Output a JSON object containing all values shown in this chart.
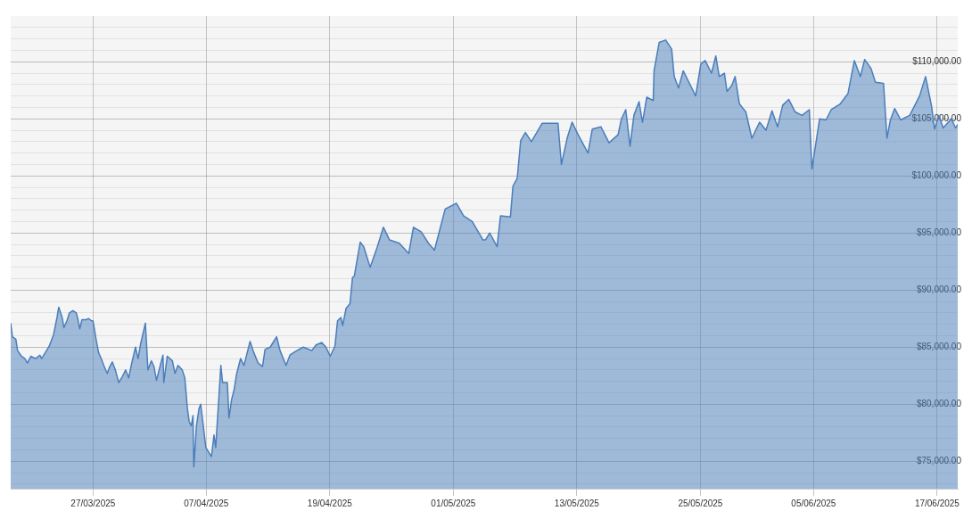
{
  "chart_data": {
    "type": "area",
    "color": "#4a7ebb",
    "x": [
      "2025-03-19T00:00",
      "2025-03-19T04:00",
      "2025-03-19T12:00",
      "2025-03-19T16:00",
      "2025-03-20T01:00",
      "2025-03-20T09:00",
      "2025-03-20T15:00",
      "2025-03-20T23:00",
      "2025-03-21T10:00",
      "2025-03-21T20:00",
      "2025-03-22T00:00",
      "2025-03-22T10:00",
      "2025-03-22T18:00",
      "2025-03-23T04:00",
      "2025-03-23T12:00",
      "2025-03-23T16:00",
      "2025-03-24T00:00",
      "2025-03-24T04:00",
      "2025-03-24T11:00",
      "2025-03-24T17:00",
      "2025-03-25T01:00",
      "2025-03-25T09:00",
      "2025-03-25T13:00",
      "2025-03-25T17:00",
      "2025-03-25T22:00",
      "2025-03-26T08:00",
      "2025-03-26T14:00",
      "2025-03-26T20:00",
      "2025-03-27T00:00",
      "2025-03-27T07:00",
      "2025-03-27T13:00",
      "2025-03-27T19:00",
      "2025-03-28T01:00",
      "2025-03-28T09:00",
      "2025-03-28T15:00",
      "2025-03-28T21:00",
      "2025-03-29T04:00",
      "2025-03-29T12:00",
      "2025-03-29T20:00",
      "2025-03-30T04:00",
      "2025-03-30T11:00",
      "2025-03-30T17:00",
      "2025-03-31T03:00",
      "2025-03-31T09:00",
      "2025-03-31T15:00",
      "2025-04-01T02:00",
      "2025-04-01T08:00",
      "2025-04-01T16:00",
      "2025-04-01T22:00",
      "2025-04-02T04:00",
      "2025-04-02T10:00",
      "2025-04-02T19:00",
      "2025-04-02T21:00",
      "2025-04-03T05:00",
      "2025-04-03T17:00",
      "2025-04-03T23:00",
      "2025-04-04T06:00",
      "2025-04-04T16:00",
      "2025-04-04T22:00",
      "2025-04-05T04:00",
      "2025-04-05T08:00",
      "2025-04-05T13:00",
      "2025-04-05T17:00",
      "2025-04-05T19:00",
      "2025-04-06T01:00",
      "2025-04-06T07:00",
      "2025-04-06T11:00",
      "2025-04-06T17:00",
      "2025-04-06T23:00",
      "2025-04-07T12:00",
      "2025-04-07T18:00",
      "2025-04-07T22:00",
      "2025-04-08T10:00",
      "2025-04-08T14:00",
      "2025-04-09T01:00",
      "2025-04-09T05:00",
      "2025-04-09T11:00",
      "2025-04-09T17:00",
      "2025-04-09T23:00",
      "2025-04-10T08:00",
      "2025-04-10T16:00",
      "2025-04-11T00:00",
      "2025-04-11T06:00",
      "2025-04-11T14:00",
      "2025-04-12T01:00",
      "2025-04-12T11:00",
      "2025-04-12T17:00",
      "2025-04-13T05:00",
      "2025-04-13T20:00",
      "2025-04-14T04:00",
      "2025-04-14T18:00",
      "2025-04-15T03:00",
      "2025-04-15T15:00",
      "2025-04-16T10:00",
      "2025-04-17T06:00",
      "2025-04-17T16:00",
      "2025-04-18T05:00",
      "2025-04-18T15:00",
      "2025-04-19T01:00",
      "2025-04-19T12:00",
      "2025-04-19T18:00",
      "2025-04-20T02:00",
      "2025-04-20T06:00",
      "2025-04-20T14:00",
      "2025-04-20T23:00",
      "2025-04-21T05:00",
      "2025-04-21T09:00",
      "2025-04-21T23:00",
      "2025-04-22T07:00",
      "2025-04-22T22:00",
      "2025-04-23T14:00",
      "2025-04-24T05:00",
      "2025-04-24T19:00",
      "2025-04-25T18:00",
      "2025-04-26T16:00",
      "2025-04-27T03:00",
      "2025-04-27T21:00",
      "2025-04-28T14:00",
      "2025-04-29T04:00",
      "2025-04-30T05:00",
      "2025-05-01T07:00",
      "2025-05-02T00:00",
      "2025-05-02T20:00",
      "2025-05-03T21:00",
      "2025-05-04T03:00",
      "2025-05-04T13:00",
      "2025-05-05T06:00",
      "2025-05-05T14:00",
      "2025-05-06T13:00",
      "2025-05-06T19:00",
      "2025-05-07T05:00",
      "2025-05-07T13:00",
      "2025-05-08T00:00",
      "2025-05-08T14:00",
      "2025-05-09T15:00",
      "2025-05-11T04:00",
      "2025-05-11T12:00",
      "2025-05-12T02:00",
      "2025-05-12T13:00",
      "2025-05-13T03:00",
      "2025-05-14T02:00",
      "2025-05-14T12:00",
      "2025-05-15T08:00",
      "2025-05-16T03:00",
      "2025-05-17T00:00",
      "2025-05-17T08:00",
      "2025-05-17T18:00",
      "2025-05-18T04:00",
      "2025-05-18T13:00",
      "2025-05-19T01:00",
      "2025-05-19T09:00",
      "2025-05-19T19:00",
      "2025-05-20T10:00",
      "2025-05-20T12:00",
      "2025-05-21T00:00",
      "2025-05-21T15:00",
      "2025-05-22T05:00",
      "2025-05-22T11:00",
      "2025-05-22T21:00",
      "2025-05-23T08:00",
      "2025-05-23T20:00",
      "2025-05-24T13:00",
      "2025-05-25T01:00",
      "2025-05-25T11:00",
      "2025-05-26T02:00",
      "2025-05-26T12:00",
      "2025-05-26T20:00",
      "2025-05-27T08:00",
      "2025-05-27T14:00",
      "2025-05-28T01:00",
      "2025-05-28T09:00",
      "2025-05-28T19:00",
      "2025-05-29T10:00",
      "2025-05-30T00:00",
      "2025-05-30T18:00",
      "2025-05-31T09:00",
      "2025-05-31T23:00",
      "2025-06-01T12:00",
      "2025-06-02T00:00",
      "2025-06-02T14:00",
      "2025-06-03T05:00",
      "2025-06-03T21:00",
      "2025-06-04T14:00",
      "2025-06-04T20:00",
      "2025-06-05T14:00",
      "2025-06-06T05:00",
      "2025-06-06T17:00",
      "2025-06-07T14:00",
      "2025-06-08T08:00",
      "2025-06-08T23:00",
      "2025-06-09T13:00",
      "2025-06-09T23:00",
      "2025-06-10T14:00",
      "2025-06-11T00:00",
      "2025-06-11T19:00",
      "2025-06-12T03:00",
      "2025-06-12T11:00",
      "2025-06-12T21:00",
      "2025-06-13T11:00",
      "2025-06-14T08:00",
      "2025-06-15T07:00",
      "2025-06-15T21:00",
      "2025-06-16T11:00",
      "2025-06-16T18:00",
      "2025-06-17T04:00",
      "2025-06-17T14:00",
      "2025-06-18T09:00",
      "2025-06-18T19:00",
      "2025-06-19T00:00"
    ],
    "values": [
      87100,
      85900,
      85700,
      84700,
      84200,
      84000,
      83600,
      84200,
      84000,
      84300,
      84000,
      84600,
      85100,
      86100,
      87600,
      88500,
      87600,
      86700,
      87300,
      88000,
      88200,
      88000,
      87400,
      86600,
      87400,
      87400,
      87500,
      87300,
      87300,
      85700,
      84500,
      84000,
      83400,
      82700,
      83300,
      83700,
      83000,
      81900,
      82400,
      83000,
      82300,
      83400,
      85000,
      84000,
      85300,
      87100,
      83000,
      83800,
      83300,
      82100,
      83000,
      84300,
      81900,
      84200,
      83800,
      82700,
      83400,
      83000,
      82300,
      79600,
      78500,
      78100,
      79000,
      74500,
      78100,
      79600,
      80000,
      78100,
      76200,
      75400,
      77300,
      76200,
      83400,
      81900,
      81900,
      78800,
      80400,
      81300,
      82700,
      84000,
      83400,
      84600,
      85500,
      84600,
      83600,
      83300,
      84800,
      85000,
      85900,
      84700,
      83400,
      84300,
      84600,
      85000,
      84700,
      85200,
      85400,
      85000,
      84200,
      85100,
      87300,
      87600,
      86900,
      88400,
      88800,
      91100,
      91200,
      94200,
      93800,
      92000,
      93700,
      95500,
      94400,
      94100,
      93200,
      95500,
      95100,
      94100,
      93500,
      97100,
      97600,
      96500,
      96000,
      94400,
      94400,
      95000,
      93800,
      96500,
      96400,
      99100,
      99800,
      103100,
      103800,
      103000,
      104600,
      104600,
      101000,
      103400,
      104700,
      103600,
      102000,
      104100,
      104300,
      102900,
      103600,
      105000,
      105800,
      102600,
      105300,
      106500,
      104700,
      106900,
      106600,
      109200,
      111700,
      111900,
      111100,
      108700,
      107700,
      109200,
      108300,
      107000,
      109800,
      110100,
      109000,
      110500,
      108700,
      109000,
      107400,
      107900,
      108700,
      106300,
      105600,
      103300,
      104700,
      104000,
      105700,
      104300,
      106200,
      106700,
      105600,
      105300,
      105800,
      100600,
      105000,
      104900,
      105800,
      106300,
      107200,
      110100,
      108700,
      110200,
      109400,
      108200,
      108100,
      103300,
      104900,
      105900,
      104900,
      105300,
      107000,
      108700,
      106100,
      104100,
      105300,
      104200,
      105000,
      104200,
      104500
    ],
    "xlim": [
      "2025-03-19",
      "2025-06-19"
    ],
    "xticks": [
      {
        "value": "2025-03-27",
        "label": "27/03/2025"
      },
      {
        "value": "2025-04-07",
        "label": "07/04/2025"
      },
      {
        "value": "2025-04-19",
        "label": "19/04/2025"
      },
      {
        "value": "2025-05-01",
        "label": "01/05/2025"
      },
      {
        "value": "2025-05-13",
        "label": "13/05/2025"
      },
      {
        "value": "2025-05-25",
        "label": "25/05/2025"
      },
      {
        "value": "2025-06-05",
        "label": "05/06/2025"
      },
      {
        "value": "2025-06-17",
        "label": "17/06/2025"
      }
    ],
    "ylim": [
      72600,
      114000
    ],
    "yticks": [
      {
        "value": 73000,
        "label": null
      },
      {
        "value": 74000,
        "label": null
      },
      {
        "value": 75000,
        "label": "$75,000.00"
      },
      {
        "value": 76000,
        "label": null
      },
      {
        "value": 77000,
        "label": null
      },
      {
        "value": 78000,
        "label": null
      },
      {
        "value": 79000,
        "label": null
      },
      {
        "value": 80000,
        "label": "$80,000.00"
      },
      {
        "value": 81000,
        "label": null
      },
      {
        "value": 82000,
        "label": null
      },
      {
        "value": 83000,
        "label": null
      },
      {
        "value": 84000,
        "label": null
      },
      {
        "value": 85000,
        "label": "$85,000.00"
      },
      {
        "value": 86000,
        "label": null
      },
      {
        "value": 87000,
        "label": null
      },
      {
        "value": 88000,
        "label": null
      },
      {
        "value": 89000,
        "label": null
      },
      {
        "value": 90000,
        "label": "$90,000.00"
      },
      {
        "value": 91000,
        "label": null
      },
      {
        "value": 92000,
        "label": null
      },
      {
        "value": 93000,
        "label": null
      },
      {
        "value": 94000,
        "label": null
      },
      {
        "value": 95000,
        "label": "$95,000.00"
      },
      {
        "value": 96000,
        "label": null
      },
      {
        "value": 97000,
        "label": null
      },
      {
        "value": 98000,
        "label": null
      },
      {
        "value": 99000,
        "label": null
      },
      {
        "value": 100000,
        "label": "$100,000.00"
      },
      {
        "value": 101000,
        "label": null
      },
      {
        "value": 102000,
        "label": null
      },
      {
        "value": 103000,
        "label": null
      },
      {
        "value": 104000,
        "label": null
      },
      {
        "value": 105000,
        "label": "$105,000.00"
      },
      {
        "value": 106000,
        "label": null
      },
      {
        "value": 107000,
        "label": null
      },
      {
        "value": 108000,
        "label": null
      },
      {
        "value": 109000,
        "label": null
      },
      {
        "value": 110000,
        "label": "$110,000.00"
      },
      {
        "value": 111000,
        "label": null
      },
      {
        "value": 112000,
        "label": null
      },
      {
        "value": 113000,
        "label": null
      }
    ],
    "grid": true
  }
}
